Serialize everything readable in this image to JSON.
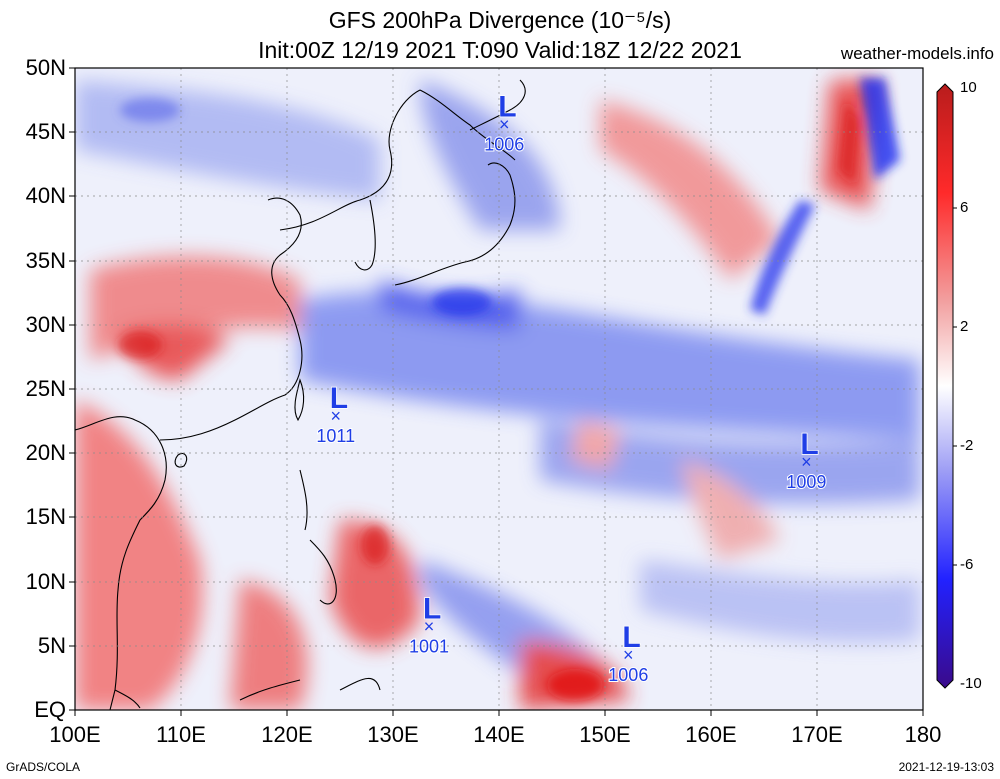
{
  "title": {
    "line1": "GFS 200hPa Divergence (10⁻⁵/s)",
    "line2": "Init:00Z 12/19 2021 T:090 Valid:18Z 12/22 2021"
  },
  "site": "weather-models.info",
  "footer": {
    "left": "GrADS/COLA",
    "right": "2021-12-19-13:03"
  },
  "y_ticks": [
    "50N",
    "45N",
    "40N",
    "35N",
    "30N",
    "25N",
    "20N",
    "15N",
    "10N",
    "5N",
    "EQ"
  ],
  "x_ticks": [
    "100E",
    "110E",
    "120E",
    "130E",
    "140E",
    "150E",
    "160E",
    "170E",
    "180"
  ],
  "colorbar_ticks": [
    "10",
    "6",
    "2",
    "-2",
    "-6",
    "-10"
  ],
  "colors": {
    "positive": "#e81010",
    "negative": "#1a1af0",
    "max": "#c01818",
    "min": "#3a0a8a",
    "marker": "#1f3ee6"
  },
  "lows": [
    {
      "label": "L",
      "pressure": "1006",
      "lon": 140.5,
      "lat": 45.6
    },
    {
      "label": "L",
      "pressure": "1011",
      "lon": 124.6,
      "lat": 22.9
    },
    {
      "label": "L",
      "pressure": "1009",
      "lon": 169.0,
      "lat": 19.3
    },
    {
      "label": "L",
      "pressure": "1001",
      "lon": 133.4,
      "lat": 6.5
    },
    {
      "label": "L",
      "pressure": "1006",
      "lon": 152.2,
      "lat": 4.3
    }
  ]
}
